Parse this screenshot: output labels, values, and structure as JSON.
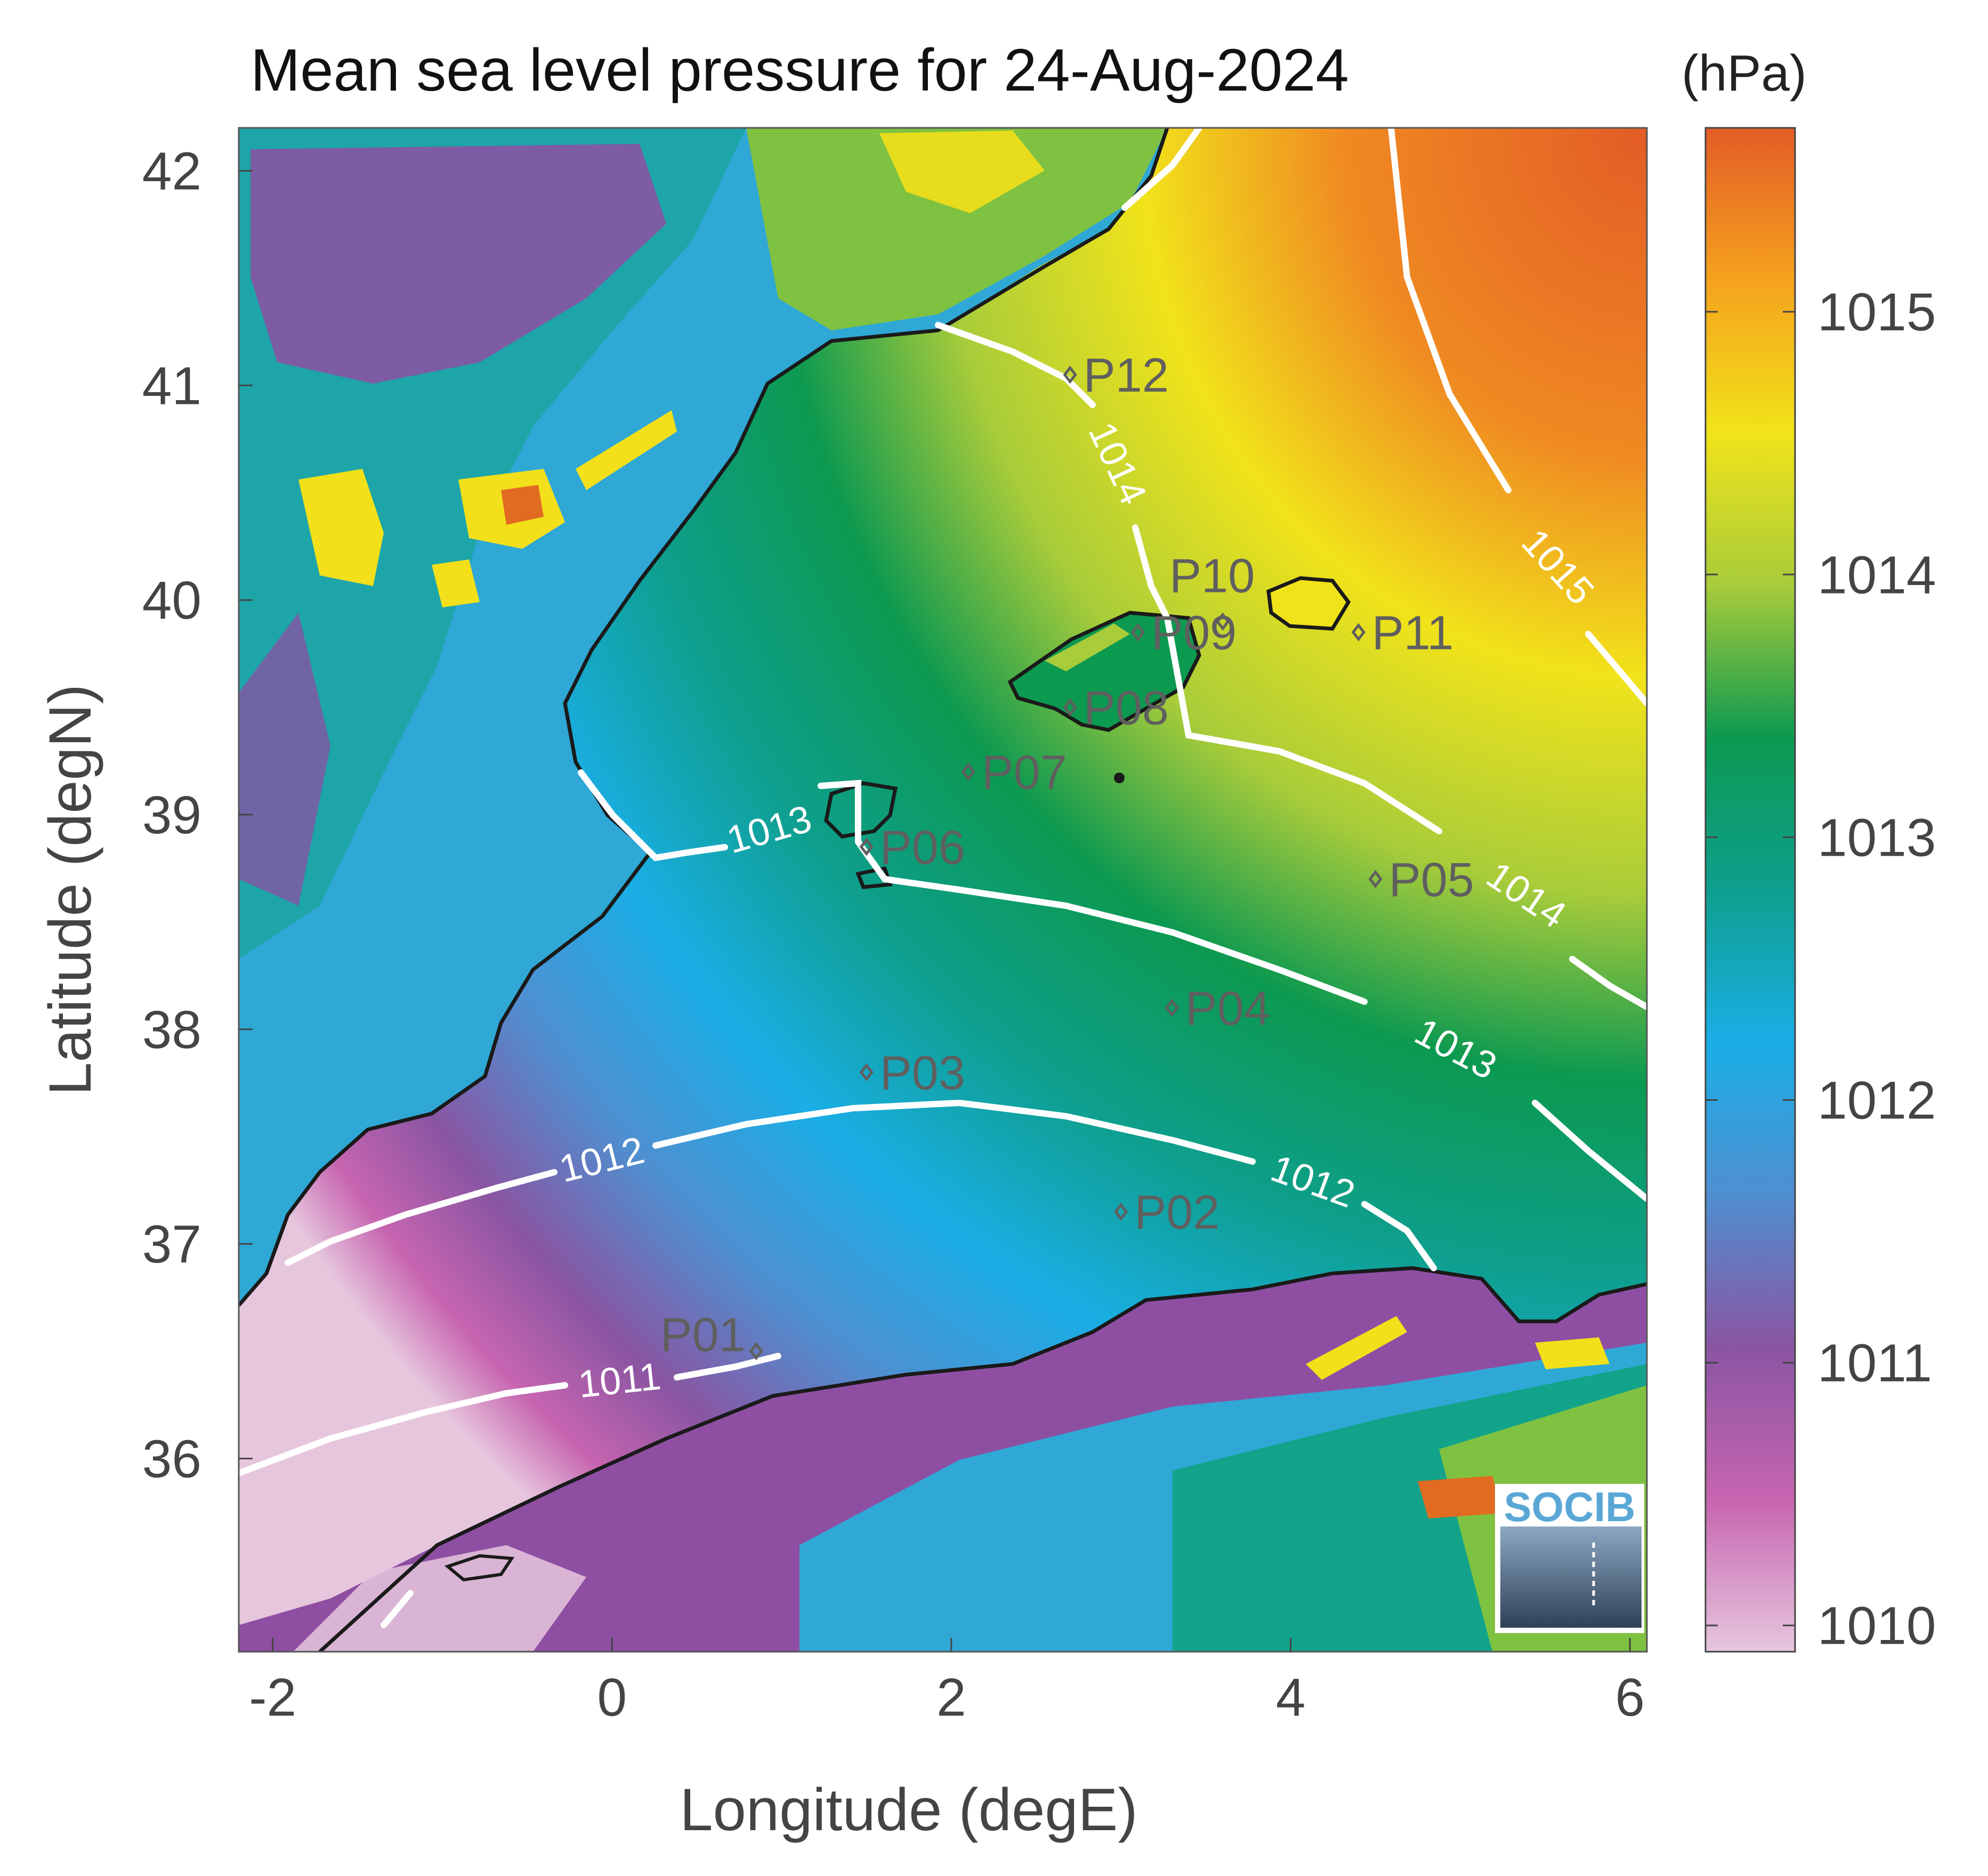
{
  "title": "Mean sea level pressure for 24-Aug-2024",
  "xlabel": "Longitude (degE)",
  "ylabel": "Latitude (degN)",
  "colorbar": {
    "unit": "(hPa)",
    "ticks": [
      "1010",
      "1011",
      "1012",
      "1013",
      "1014",
      "1015"
    ],
    "range": [
      1009.9,
      1015.7
    ],
    "colors": [
      "#e6c6dd",
      "#c765b0",
      "#8a55a2",
      "#4f8fd0",
      "#1aaee6",
      "#0e9f8e",
      "#0c9950",
      "#a8cc3a",
      "#f1e31a",
      "#f5a21d",
      "#e35c26"
    ]
  },
  "x_ticks": [
    "-2",
    "0",
    "2",
    "4",
    "6"
  ],
  "y_ticks": [
    "36",
    "37",
    "38",
    "39",
    "40",
    "41",
    "42"
  ],
  "map": {
    "lon_range": [
      -2.2,
      6.1
    ],
    "lat_range": [
      35.1,
      42.2
    ],
    "land_colors": {
      "highland": "#8e4fa3",
      "upland": "#2fa8d6",
      "plateau": "#12a38a",
      "lowland": "#7fc241",
      "peaks": "#f3e01a",
      "summits": "#e06b21"
    },
    "coastline_color": "#1a1a1a",
    "contour_color": "#ffffff"
  },
  "contours": [
    {
      "label": "1011"
    },
    {
      "label": "1012"
    },
    {
      "label": "1012"
    },
    {
      "label": "1013"
    },
    {
      "label": "1013"
    },
    {
      "label": "1014"
    },
    {
      "label": "1014"
    },
    {
      "label": "1015"
    }
  ],
  "stations": [
    {
      "name": "P01",
      "lon": 0.85,
      "lat": 36.5
    },
    {
      "name": "P02",
      "lon": 3.0,
      "lat": 37.15
    },
    {
      "name": "P03",
      "lon": 1.5,
      "lat": 37.8
    },
    {
      "name": "P04",
      "lon": 3.3,
      "lat": 38.1
    },
    {
      "name": "P05",
      "lon": 4.5,
      "lat": 38.7
    },
    {
      "name": "P06",
      "lon": 1.5,
      "lat": 38.85
    },
    {
      "name": "P07",
      "lon": 2.1,
      "lat": 39.2
    },
    {
      "name": "P08",
      "lon": 2.7,
      "lat": 39.5
    },
    {
      "name": "P09",
      "lon": 3.1,
      "lat": 39.85
    },
    {
      "name": "P10",
      "lon": 3.6,
      "lat": 39.9
    },
    {
      "name": "P11",
      "lon": 4.4,
      "lat": 39.85
    },
    {
      "name": "P12",
      "lon": 2.7,
      "lat": 41.05
    }
  ],
  "logo": {
    "text": "SOCIB"
  }
}
